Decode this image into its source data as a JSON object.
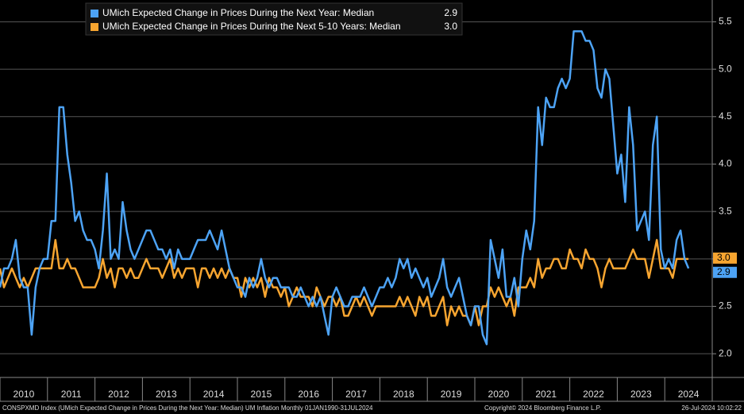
{
  "chart_data": {
    "type": "line",
    "x": [
      2010,
      2010.083,
      2010.167,
      2010.25,
      2010.333,
      2010.417,
      2010.5,
      2010.583,
      2010.667,
      2010.75,
      2010.833,
      2010.917,
      2011,
      2011.083,
      2011.167,
      2011.25,
      2011.333,
      2011.417,
      2011.5,
      2011.583,
      2011.667,
      2011.75,
      2011.833,
      2011.917,
      2012,
      2012.083,
      2012.167,
      2012.25,
      2012.333,
      2012.417,
      2012.5,
      2012.583,
      2012.667,
      2012.75,
      2012.833,
      2012.917,
      2013,
      2013.083,
      2013.167,
      2013.25,
      2013.333,
      2013.417,
      2013.5,
      2013.583,
      2013.667,
      2013.75,
      2013.833,
      2013.917,
      2014,
      2014.083,
      2014.167,
      2014.25,
      2014.333,
      2014.417,
      2014.5,
      2014.583,
      2014.667,
      2014.75,
      2014.833,
      2014.917,
      2015,
      2015.083,
      2015.167,
      2015.25,
      2015.333,
      2015.417,
      2015.5,
      2015.583,
      2015.667,
      2015.75,
      2015.833,
      2015.917,
      2016,
      2016.083,
      2016.167,
      2016.25,
      2016.333,
      2016.417,
      2016.5,
      2016.583,
      2016.667,
      2016.75,
      2016.833,
      2016.917,
      2017,
      2017.083,
      2017.167,
      2017.25,
      2017.333,
      2017.417,
      2017.5,
      2017.583,
      2017.667,
      2017.75,
      2017.833,
      2017.917,
      2018,
      2018.083,
      2018.167,
      2018.25,
      2018.333,
      2018.417,
      2018.5,
      2018.583,
      2018.667,
      2018.75,
      2018.833,
      2018.917,
      2019,
      2019.083,
      2019.167,
      2019.25,
      2019.333,
      2019.417,
      2019.5,
      2019.583,
      2019.667,
      2019.75,
      2019.833,
      2019.917,
      2020,
      2020.083,
      2020.167,
      2020.25,
      2020.333,
      2020.417,
      2020.5,
      2020.583,
      2020.667,
      2020.75,
      2020.833,
      2020.917,
      2021,
      2021.083,
      2021.167,
      2021.25,
      2021.333,
      2021.417,
      2021.5,
      2021.583,
      2021.667,
      2021.75,
      2021.833,
      2021.917,
      2022,
      2022.083,
      2022.167,
      2022.25,
      2022.333,
      2022.417,
      2022.5,
      2022.583,
      2022.667,
      2022.75,
      2022.833,
      2022.917,
      2023,
      2023.083,
      2023.167,
      2023.25,
      2023.333,
      2023.417,
      2023.5,
      2023.583,
      2023.667,
      2023.75,
      2023.833,
      2023.917,
      2024,
      2024.083,
      2024.167,
      2024.25,
      2024.333,
      2024.417,
      2024.5
    ],
    "series": [
      {
        "name": "UMich Expected Change in Prices During the Next Year: Median",
        "color": "#4da3f5",
        "last_label": "2.9",
        "values": [
          2.7,
          2.9,
          2.9,
          3.0,
          3.2,
          2.8,
          2.7,
          2.7,
          2.2,
          2.7,
          2.9,
          3.0,
          3.0,
          3.4,
          3.4,
          4.6,
          4.6,
          4.1,
          3.8,
          3.4,
          3.5,
          3.3,
          3.2,
          3.2,
          3.1,
          2.9,
          3.3,
          3.9,
          3.0,
          3.1,
          3.0,
          3.6,
          3.3,
          3.1,
          3.0,
          3.1,
          3.2,
          3.3,
          3.3,
          3.2,
          3.1,
          3.1,
          3.0,
          3.1,
          2.9,
          3.1,
          3.0,
          3.0,
          3.0,
          3.1,
          3.2,
          3.2,
          3.2,
          3.3,
          3.2,
          3.1,
          3.3,
          3.1,
          2.9,
          2.8,
          2.7,
          2.7,
          2.6,
          2.8,
          2.7,
          2.8,
          3.0,
          2.8,
          2.7,
          2.8,
          2.8,
          2.7,
          2.7,
          2.7,
          2.6,
          2.6,
          2.7,
          2.6,
          2.5,
          2.6,
          2.5,
          2.6,
          2.4,
          2.2,
          2.6,
          2.7,
          2.6,
          2.5,
          2.5,
          2.6,
          2.6,
          2.6,
          2.7,
          2.6,
          2.5,
          2.6,
          2.7,
          2.7,
          2.8,
          2.7,
          2.8,
          3.0,
          2.9,
          3.0,
          2.8,
          2.9,
          2.8,
          2.7,
          2.8,
          2.6,
          2.7,
          2.8,
          3.0,
          2.7,
          2.6,
          2.7,
          2.8,
          2.6,
          2.4,
          2.3,
          2.5,
          2.5,
          2.2,
          2.1,
          3.2,
          3.0,
          2.8,
          3.1,
          2.6,
          2.6,
          2.8,
          2.5,
          3.0,
          3.3,
          3.1,
          3.4,
          4.6,
          4.2,
          4.7,
          4.6,
          4.6,
          4.8,
          4.9,
          4.8,
          4.9,
          5.4,
          5.4,
          5.4,
          5.3,
          5.3,
          5.2,
          4.8,
          4.7,
          5.0,
          4.9,
          4.4,
          3.9,
          4.1,
          3.6,
          4.6,
          4.2,
          3.3,
          3.4,
          3.5,
          3.2,
          4.2,
          4.5,
          3.1,
          2.9,
          3.0,
          2.9,
          3.2,
          3.3,
          3.0,
          2.9
        ]
      },
      {
        "name": "UMich Expected Change in Prices During the Next 5-10 Years: Median",
        "color": "#f7a530",
        "last_label": "3.0",
        "values": [
          2.9,
          2.7,
          2.8,
          2.9,
          2.8,
          2.7,
          2.8,
          2.7,
          2.8,
          2.9,
          2.9,
          2.9,
          2.9,
          2.9,
          3.2,
          2.9,
          2.9,
          3.0,
          2.9,
          2.9,
          2.8,
          2.7,
          2.7,
          2.7,
          2.7,
          2.8,
          3.0,
          2.8,
          2.9,
          2.7,
          2.9,
          2.9,
          2.8,
          2.9,
          2.8,
          2.8,
          2.9,
          3.0,
          2.9,
          2.9,
          2.9,
          2.8,
          2.9,
          3.0,
          2.8,
          2.9,
          2.8,
          2.9,
          2.9,
          2.9,
          2.7,
          2.9,
          2.9,
          2.8,
          2.9,
          2.8,
          2.9,
          2.8,
          2.9,
          2.8,
          2.8,
          2.6,
          2.8,
          2.7,
          2.8,
          2.7,
          2.8,
          2.6,
          2.8,
          2.7,
          2.7,
          2.6,
          2.7,
          2.5,
          2.6,
          2.7,
          2.6,
          2.6,
          2.6,
          2.5,
          2.7,
          2.6,
          2.5,
          2.6,
          2.6,
          2.5,
          2.6,
          2.4,
          2.4,
          2.5,
          2.6,
          2.5,
          2.6,
          2.5,
          2.4,
          2.5,
          2.5,
          2.5,
          2.5,
          2.5,
          2.5,
          2.6,
          2.5,
          2.6,
          2.5,
          2.4,
          2.6,
          2.5,
          2.6,
          2.4,
          2.4,
          2.5,
          2.6,
          2.3,
          2.5,
          2.4,
          2.5,
          2.4,
          2.4,
          2.3,
          2.5,
          2.3,
          2.5,
          2.5,
          2.7,
          2.6,
          2.7,
          2.6,
          2.5,
          2.6,
          2.4,
          2.7,
          2.7,
          2.7,
          2.8,
          2.7,
          3.0,
          2.8,
          2.9,
          2.9,
          3.0,
          3.0,
          2.9,
          2.9,
          3.1,
          3.0,
          3.0,
          2.9,
          3.1,
          3.0,
          3.0,
          2.9,
          2.7,
          2.9,
          3.0,
          2.9,
          2.9,
          2.9,
          2.9,
          3.0,
          3.1,
          3.0,
          3.0,
          3.0,
          2.8,
          3.0,
          3.2,
          2.9,
          2.9,
          2.9,
          2.8,
          3.0,
          3.0,
          3.0,
          3.0
        ]
      }
    ],
    "xlim": [
      2010,
      2025
    ],
    "xticks": [
      2010,
      2011,
      2012,
      2013,
      2014,
      2015,
      2016,
      2017,
      2018,
      2019,
      2020,
      2021,
      2022,
      2023,
      2024
    ],
    "ylim": [
      1.75,
      5.73
    ],
    "yticks": [
      {
        "value": 2,
        "label": "2.0"
      },
      2.5,
      {
        "value": 3,
        "label": "3.0"
      },
      3.5,
      {
        "value": 4,
        "label": "4.0"
      },
      4.5,
      {
        "value": 5,
        "label": "5.0"
      },
      5.5
    ],
    "grid": true
  },
  "footer": {
    "source": "CONSPXMD Index (UMich Expected Change in Prices During the Next Year: Median) UM Inflation  Monthly 01JAN1990-31JUL2024",
    "copyright": "Copyright© 2024 Bloomberg Finance L.P.",
    "timestamp": "26-Jul-2024 10:02:22"
  }
}
